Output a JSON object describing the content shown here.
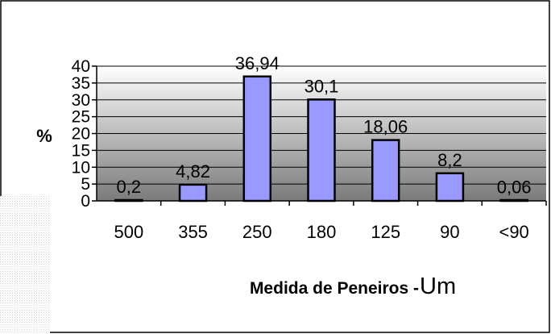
{
  "chart_data": {
    "type": "bar",
    "categories": [
      "500",
      "355",
      "250",
      "180",
      "125",
      "90",
      "<90"
    ],
    "values": [
      0.2,
      4.82,
      36.94,
      30.1,
      18.06,
      8.2,
      0.06
    ],
    "data_labels": [
      "0,2",
      "4,82",
      "36,94",
      "30,1",
      "18,06",
      "8,2",
      "0,06"
    ],
    "title": "",
    "ylabel": "%",
    "xlabel": "Medida de Peneiros - ",
    "xlabel_unit": "Um",
    "ylim": [
      0,
      40
    ],
    "yticks": [
      0,
      5,
      10,
      15,
      20,
      25,
      30,
      35,
      40
    ],
    "grid": true,
    "legend": "none",
    "colors": {
      "bar_fill": "#9999ff",
      "bar_stroke": "#000000",
      "plot_gradient_top": "#ffffff",
      "plot_gradient_bottom": "#7a7a7a"
    }
  }
}
